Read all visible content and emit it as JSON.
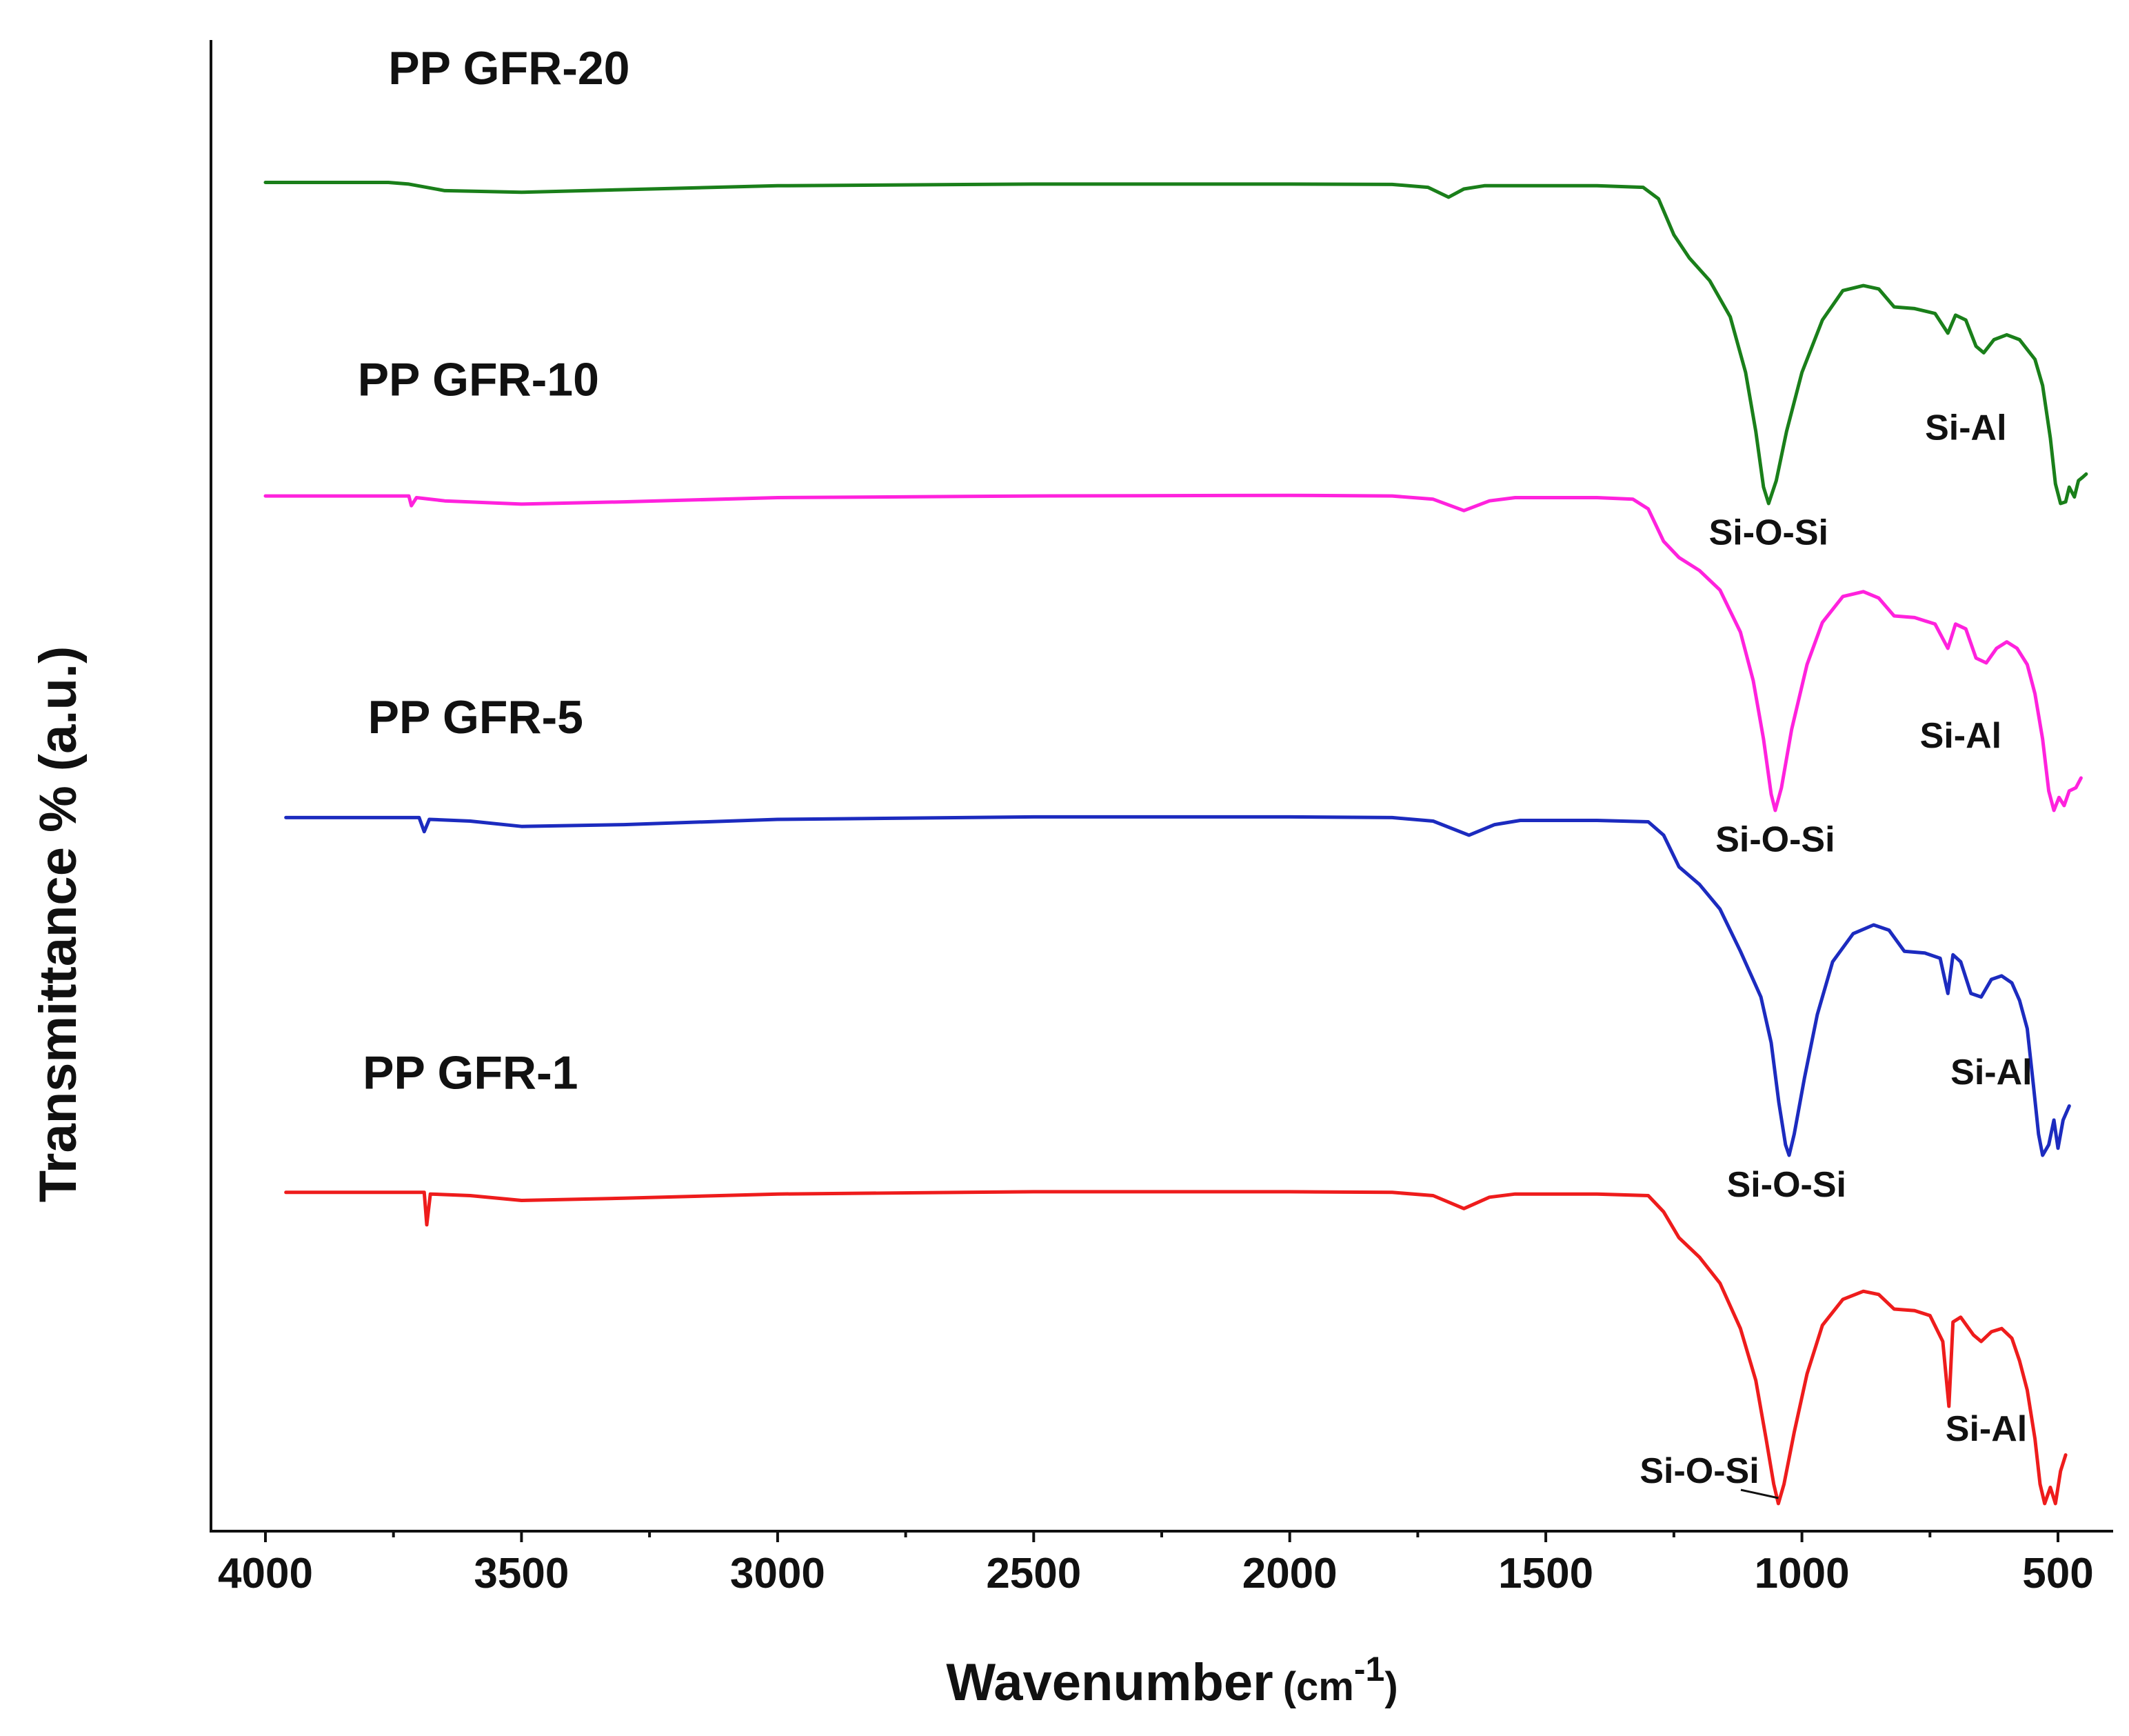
{
  "chart_data": {
    "type": "line",
    "title": "",
    "xlabel": "Wavenumber",
    "xlabel_unit_prefix": "(cm",
    "xlabel_unit_exp": "-1",
    "xlabel_unit_suffix": ")",
    "ylabel": "Transmittance % (a.u.)",
    "xlim": [
      4000,
      400
    ],
    "x_reversed": true,
    "y_ticks_shown": false,
    "grid": false,
    "x_ticks": [
      {
        "value": 4000,
        "label": "4000"
      },
      {
        "value": 3500,
        "label": "3500"
      },
      {
        "value": 3000,
        "label": "3000"
      },
      {
        "value": 2500,
        "label": "2500"
      },
      {
        "value": 2000,
        "label": "2000"
      },
      {
        "value": 1500,
        "label": "1500"
      },
      {
        "value": 1000,
        "label": "1000"
      },
      {
        "value": 500,
        "label": "500"
      }
    ],
    "series": [
      {
        "name": "PP GFR-20",
        "color": "#1a7f1a",
        "offset": 3,
        "points": [
          [
            4000,
            0.98
          ],
          [
            3760,
            0.98
          ],
          [
            3720,
            0.975
          ],
          [
            3650,
            0.955
          ],
          [
            3500,
            0.95
          ],
          [
            3300,
            0.958
          ],
          [
            3000,
            0.97
          ],
          [
            2500,
            0.975
          ],
          [
            2000,
            0.975
          ],
          [
            1800,
            0.974
          ],
          [
            1730,
            0.965
          ],
          [
            1690,
            0.935
          ],
          [
            1660,
            0.96
          ],
          [
            1620,
            0.97
          ],
          [
            1400,
            0.97
          ],
          [
            1310,
            0.965
          ],
          [
            1280,
            0.93
          ],
          [
            1250,
            0.82
          ],
          [
            1220,
            0.75
          ],
          [
            1180,
            0.68
          ],
          [
            1140,
            0.57
          ],
          [
            1110,
            0.4
          ],
          [
            1090,
            0.22
          ],
          [
            1075,
            0.05
          ],
          [
            1065,
            0.0
          ],
          [
            1050,
            0.07
          ],
          [
            1030,
            0.22
          ],
          [
            1000,
            0.4
          ],
          [
            960,
            0.56
          ],
          [
            920,
            0.65
          ],
          [
            880,
            0.665
          ],
          [
            850,
            0.655
          ],
          [
            820,
            0.6
          ],
          [
            780,
            0.595
          ],
          [
            740,
            0.58
          ],
          [
            715,
            0.52
          ],
          [
            700,
            0.575
          ],
          [
            680,
            0.56
          ],
          [
            660,
            0.48
          ],
          [
            645,
            0.46
          ],
          [
            625,
            0.5
          ],
          [
            600,
            0.515
          ],
          [
            575,
            0.5
          ],
          [
            555,
            0.46
          ],
          [
            545,
            0.44
          ],
          [
            530,
            0.36
          ],
          [
            515,
            0.2
          ],
          [
            505,
            0.06
          ],
          [
            495,
            0.0
          ],
          [
            485,
            0.005
          ],
          [
            478,
            0.05
          ],
          [
            468,
            0.02
          ],
          [
            460,
            0.07
          ],
          [
            452,
            0.08
          ],
          [
            445,
            0.09
          ]
        ]
      },
      {
        "name": "PP GFR-10",
        "color": "#ff22dd",
        "offset": 2,
        "points": [
          [
            4000,
            0.97
          ],
          [
            3720,
            0.97
          ],
          [
            3715,
            0.94
          ],
          [
            3705,
            0.965
          ],
          [
            3650,
            0.955
          ],
          [
            3500,
            0.945
          ],
          [
            3300,
            0.952
          ],
          [
            3000,
            0.965
          ],
          [
            2500,
            0.97
          ],
          [
            2000,
            0.972
          ],
          [
            1800,
            0.97
          ],
          [
            1720,
            0.96
          ],
          [
            1660,
            0.925
          ],
          [
            1610,
            0.955
          ],
          [
            1560,
            0.965
          ],
          [
            1400,
            0.965
          ],
          [
            1330,
            0.96
          ],
          [
            1300,
            0.93
          ],
          [
            1270,
            0.83
          ],
          [
            1240,
            0.78
          ],
          [
            1200,
            0.74
          ],
          [
            1160,
            0.68
          ],
          [
            1120,
            0.55
          ],
          [
            1095,
            0.4
          ],
          [
            1075,
            0.22
          ],
          [
            1060,
            0.05
          ],
          [
            1052,
            0.0
          ],
          [
            1040,
            0.07
          ],
          [
            1020,
            0.25
          ],
          [
            990,
            0.45
          ],
          [
            960,
            0.58
          ],
          [
            920,
            0.66
          ],
          [
            880,
            0.675
          ],
          [
            850,
            0.655
          ],
          [
            820,
            0.6
          ],
          [
            780,
            0.595
          ],
          [
            740,
            0.575
          ],
          [
            715,
            0.5
          ],
          [
            700,
            0.575
          ],
          [
            680,
            0.56
          ],
          [
            660,
            0.47
          ],
          [
            640,
            0.455
          ],
          [
            620,
            0.5
          ],
          [
            600,
            0.52
          ],
          [
            580,
            0.5
          ],
          [
            560,
            0.45
          ],
          [
            545,
            0.36
          ],
          [
            530,
            0.22
          ],
          [
            518,
            0.06
          ],
          [
            508,
            0.0
          ],
          [
            498,
            0.04
          ],
          [
            488,
            0.015
          ],
          [
            478,
            0.06
          ],
          [
            465,
            0.07
          ],
          [
            455,
            0.1
          ]
        ]
      },
      {
        "name": "PP GFR-5",
        "color": "#1c2bbf",
        "offset": 1,
        "points": [
          [
            3960,
            0.96
          ],
          [
            3700,
            0.96
          ],
          [
            3690,
            0.92
          ],
          [
            3680,
            0.955
          ],
          [
            3600,
            0.95
          ],
          [
            3500,
            0.935
          ],
          [
            3300,
            0.94
          ],
          [
            3000,
            0.955
          ],
          [
            2500,
            0.962
          ],
          [
            2000,
            0.962
          ],
          [
            1800,
            0.96
          ],
          [
            1720,
            0.95
          ],
          [
            1650,
            0.91
          ],
          [
            1600,
            0.94
          ],
          [
            1550,
            0.952
          ],
          [
            1400,
            0.952
          ],
          [
            1300,
            0.948
          ],
          [
            1270,
            0.91
          ],
          [
            1240,
            0.82
          ],
          [
            1200,
            0.77
          ],
          [
            1160,
            0.7
          ],
          [
            1120,
            0.58
          ],
          [
            1080,
            0.45
          ],
          [
            1060,
            0.32
          ],
          [
            1045,
            0.15
          ],
          [
            1032,
            0.03
          ],
          [
            1025,
            0.0
          ],
          [
            1015,
            0.06
          ],
          [
            995,
            0.22
          ],
          [
            970,
            0.4
          ],
          [
            940,
            0.55
          ],
          [
            900,
            0.63
          ],
          [
            860,
            0.655
          ],
          [
            830,
            0.64
          ],
          [
            800,
            0.58
          ],
          [
            760,
            0.575
          ],
          [
            730,
            0.56
          ],
          [
            715,
            0.46
          ],
          [
            705,
            0.57
          ],
          [
            690,
            0.55
          ],
          [
            670,
            0.46
          ],
          [
            650,
            0.45
          ],
          [
            630,
            0.5
          ],
          [
            610,
            0.51
          ],
          [
            590,
            0.49
          ],
          [
            575,
            0.44
          ],
          [
            560,
            0.36
          ],
          [
            548,
            0.2
          ],
          [
            538,
            0.06
          ],
          [
            530,
            0.0
          ],
          [
            518,
            0.03
          ],
          [
            508,
            0.1
          ],
          [
            500,
            0.02
          ],
          [
            490,
            0.1
          ],
          [
            478,
            0.14
          ]
        ]
      },
      {
        "name": "PP GFR-1",
        "color": "#ee1c1c",
        "offset": 0,
        "points": [
          [
            3960,
            0.96
          ],
          [
            3690,
            0.96
          ],
          [
            3685,
            0.86
          ],
          [
            3678,
            0.955
          ],
          [
            3600,
            0.95
          ],
          [
            3500,
            0.935
          ],
          [
            3300,
            0.942
          ],
          [
            3000,
            0.955
          ],
          [
            2500,
            0.962
          ],
          [
            2000,
            0.962
          ],
          [
            1800,
            0.96
          ],
          [
            1720,
            0.95
          ],
          [
            1660,
            0.91
          ],
          [
            1610,
            0.945
          ],
          [
            1560,
            0.955
          ],
          [
            1400,
            0.955
          ],
          [
            1300,
            0.95
          ],
          [
            1270,
            0.9
          ],
          [
            1240,
            0.82
          ],
          [
            1200,
            0.76
          ],
          [
            1160,
            0.68
          ],
          [
            1120,
            0.54
          ],
          [
            1090,
            0.38
          ],
          [
            1070,
            0.2
          ],
          [
            1055,
            0.06
          ],
          [
            1046,
            0.0
          ],
          [
            1035,
            0.06
          ],
          [
            1015,
            0.22
          ],
          [
            990,
            0.4
          ],
          [
            960,
            0.55
          ],
          [
            920,
            0.63
          ],
          [
            880,
            0.655
          ],
          [
            850,
            0.645
          ],
          [
            820,
            0.6
          ],
          [
            780,
            0.595
          ],
          [
            750,
            0.58
          ],
          [
            725,
            0.5
          ],
          [
            713,
            0.3
          ],
          [
            705,
            0.56
          ],
          [
            690,
            0.575
          ],
          [
            665,
            0.52
          ],
          [
            650,
            0.5
          ],
          [
            630,
            0.53
          ],
          [
            610,
            0.54
          ],
          [
            590,
            0.51
          ],
          [
            575,
            0.44
          ],
          [
            560,
            0.35
          ],
          [
            545,
            0.2
          ],
          [
            535,
            0.06
          ],
          [
            526,
            0.0
          ],
          [
            515,
            0.05
          ],
          [
            505,
            0.0
          ],
          [
            495,
            0.1
          ],
          [
            485,
            0.15
          ]
        ]
      }
    ],
    "series_labels": [
      {
        "series": "PP GFR-20",
        "text": "PP GFR-20",
        "x": 3760,
        "y": 1.28,
        "offset": 3
      },
      {
        "series": "PP GFR-10",
        "text": "PP GFR-10",
        "x": 3820,
        "y": 1.28,
        "offset": 2
      },
      {
        "series": "PP GFR-5",
        "text": "PP GFR-5",
        "x": 3800,
        "y": 1.2,
        "offset": 1
      },
      {
        "series": "PP GFR-1",
        "text": "PP GFR-1",
        "x": 3810,
        "y": 1.28,
        "offset": 0
      }
    ],
    "annotations": [
      {
        "text": "Si-O-Si",
        "x": 1065,
        "y": -0.02,
        "offset": 3
      },
      {
        "text": "Si-Al",
        "x": 680,
        "y": 0.3,
        "offset": 3
      },
      {
        "text": "Si-O-Si",
        "x": 1052,
        "y": -0.02,
        "offset": 2
      },
      {
        "text": "Si-Al",
        "x": 690,
        "y": 0.3,
        "offset": 2
      },
      {
        "text": "Si-O-Si",
        "x": 1030,
        "y": -0.02,
        "offset": 1
      },
      {
        "text": "Si-Al",
        "x": 630,
        "y": 0.3,
        "offset": 1
      },
      {
        "text": "Si-O-Si",
        "x": 1200,
        "y": 0.17,
        "offset": 0,
        "leader_to": [
          1046,
          0.0
        ]
      },
      {
        "text": "Si-Al",
        "x": 640,
        "y": 0.3,
        "offset": 0
      }
    ]
  }
}
